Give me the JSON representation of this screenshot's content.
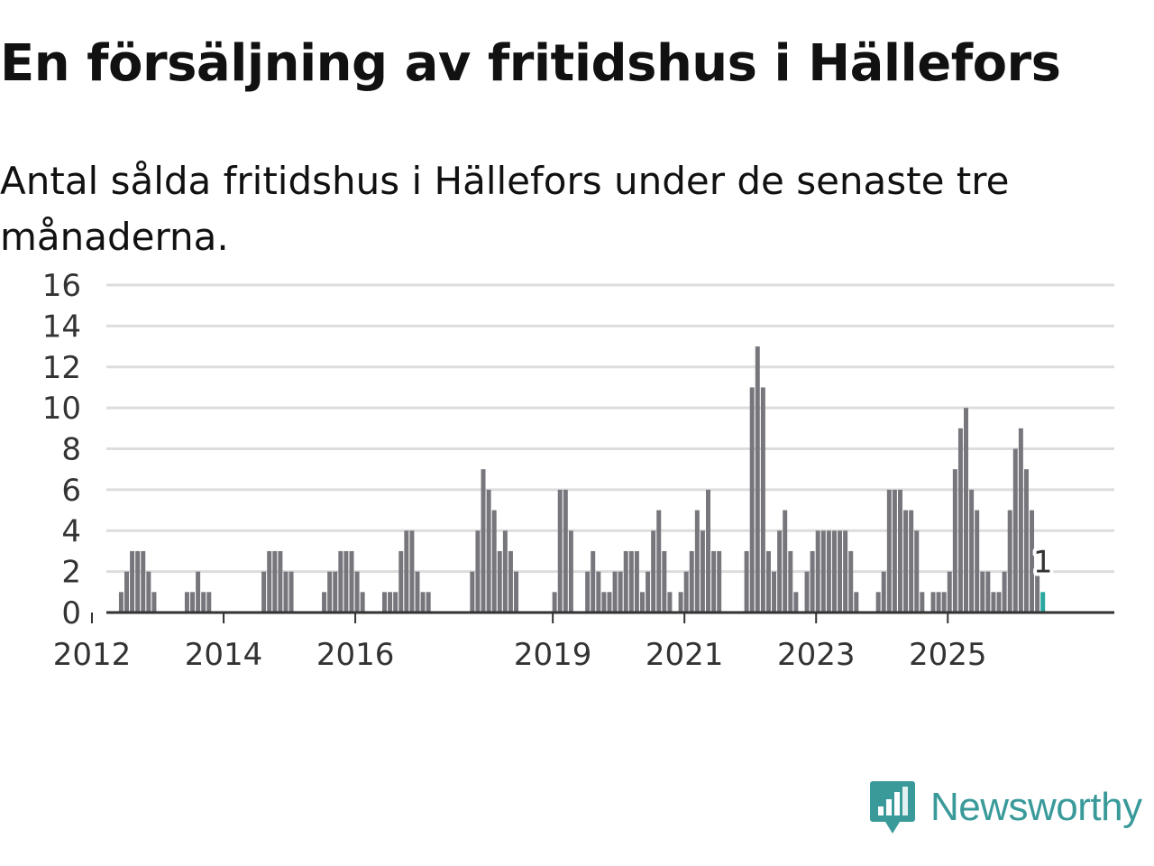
{
  "title": "En försäljning av fritidshus i Hällefors",
  "subtitle": "Antal sålda fritidshus i Hällefors under de senaste tre månaderna.",
  "brand": "Newsworthy",
  "colors": {
    "bar": "#76767c",
    "highlight": "#2aa8a0",
    "grid": "#dddddd",
    "brand": "#3a9a9a"
  },
  "chart_data": {
    "type": "bar",
    "x_unit": "month",
    "start_month": "2012-01",
    "ylim": [
      0,
      16
    ],
    "yticks": [
      0,
      2,
      4,
      6,
      8,
      10,
      12,
      14,
      16
    ],
    "xticks": [
      "2012",
      "2014",
      "2016",
      "2019",
      "2021",
      "2023",
      "2025"
    ],
    "grid": true,
    "values": [
      0,
      0,
      0,
      0,
      0,
      1,
      2,
      3,
      3,
      3,
      2,
      1,
      0,
      0,
      0,
      0,
      0,
      1,
      1,
      2,
      1,
      1,
      0,
      0,
      0,
      0,
      0,
      0,
      0,
      0,
      0,
      2,
      3,
      3,
      3,
      2,
      2,
      0,
      0,
      0,
      0,
      0,
      1,
      2,
      2,
      3,
      3,
      3,
      2,
      1,
      0,
      0,
      0,
      1,
      1,
      1,
      3,
      4,
      4,
      2,
      1,
      1,
      0,
      0,
      0,
      0,
      0,
      0,
      0,
      2,
      4,
      7,
      6,
      5,
      3,
      4,
      3,
      2,
      0,
      0,
      0,
      0,
      0,
      0,
      1,
      6,
      6,
      4,
      0,
      0,
      2,
      3,
      2,
      1,
      1,
      2,
      2,
      3,
      3,
      3,
      1,
      2,
      4,
      5,
      3,
      1,
      0,
      1,
      2,
      3,
      5,
      4,
      6,
      3,
      3,
      0,
      0,
      0,
      0,
      3,
      11,
      13,
      11,
      3,
      2,
      4,
      5,
      3,
      1,
      0,
      2,
      3,
      4,
      4,
      4,
      4,
      4,
      4,
      3,
      1,
      0,
      0,
      0,
      1,
      2,
      6,
      6,
      6,
      5,
      5,
      4,
      1,
      0,
      1,
      1,
      1,
      2,
      7,
      9,
      10,
      6,
      5,
      2,
      2,
      1,
      1,
      2,
      5,
      8,
      9,
      7,
      5,
      2,
      1
    ],
    "highlight_last": true,
    "last_label": "1"
  }
}
